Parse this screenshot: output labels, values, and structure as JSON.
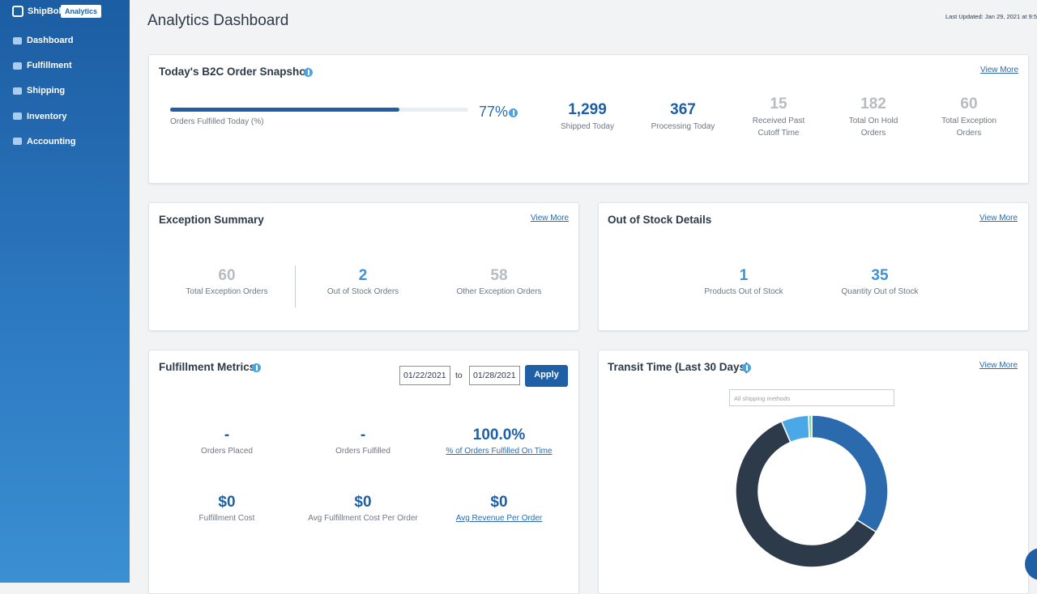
{
  "sidebar": {
    "brand": "ShipBob",
    "badge": "Analytics",
    "nav": [
      "Dashboard",
      "Fulfillment",
      "Shipping",
      "Inventory",
      "Accounting"
    ]
  },
  "header": {
    "title": "Analytics Dashboard",
    "last_updated": "Last Updated: Jan 29, 2021 at 9:5"
  },
  "snapshot": {
    "title": "Today's B2C Order Snapshot",
    "view_more": "View More",
    "progress": {
      "value": 77,
      "label": "77%",
      "caption": "Orders Fulfilled Today (%)"
    },
    "stats": [
      {
        "value": "1,299",
        "label": "Shipped Today"
      },
      {
        "value": "367",
        "label": "Processing Today"
      },
      {
        "value": "15",
        "label": "Received Past Cutoff Time"
      },
      {
        "value": "182",
        "label": "Total On Hold Orders"
      },
      {
        "value": "60",
        "label": "Total Exception Orders"
      }
    ]
  },
  "exceptions": {
    "title": "Exception Summary",
    "view_more": "View More",
    "stats": [
      {
        "value": "60",
        "label": "Total Exception Orders"
      },
      {
        "value": "2",
        "label": "Out of Stock Orders"
      },
      {
        "value": "58",
        "label": "Other Exception Orders"
      }
    ]
  },
  "out_of_stock": {
    "title": "Out of Stock Details",
    "view_more": "View More",
    "stats": [
      {
        "value": "1",
        "label": "Products Out of Stock"
      },
      {
        "value": "35",
        "label": "Quantity Out of Stock"
      }
    ]
  },
  "fulfillment": {
    "title": "Fulfillment Metrics",
    "from": "01/22/2021",
    "to_label": "to",
    "to": "01/28/2021",
    "apply": "Apply",
    "stats": [
      {
        "value": "-",
        "label": "Orders Placed"
      },
      {
        "value": "-",
        "label": "Orders Fulfilled"
      },
      {
        "value": "100.0%",
        "label": "% of Orders Fulfilled On Time"
      },
      {
        "value": "$0",
        "label": "Fulfillment Cost"
      },
      {
        "value": "$0",
        "label": "Avg Fulfillment Cost Per Order"
      },
      {
        "value": "$0",
        "label": "Avg Revenue Per Order"
      }
    ]
  },
  "transit": {
    "view_more": "View More",
    "select": "All shipping methods"
  },
  "chart_data": {
    "type": "donut",
    "title": "Transit Time (Last 30 Days)",
    "values": [
      34,
      59.5,
      5.8,
      0.7
    ],
    "colors": [
      "#2a6aad",
      "#2d3a4a",
      "#4aa8e6",
      "#7ed9a8"
    ]
  }
}
